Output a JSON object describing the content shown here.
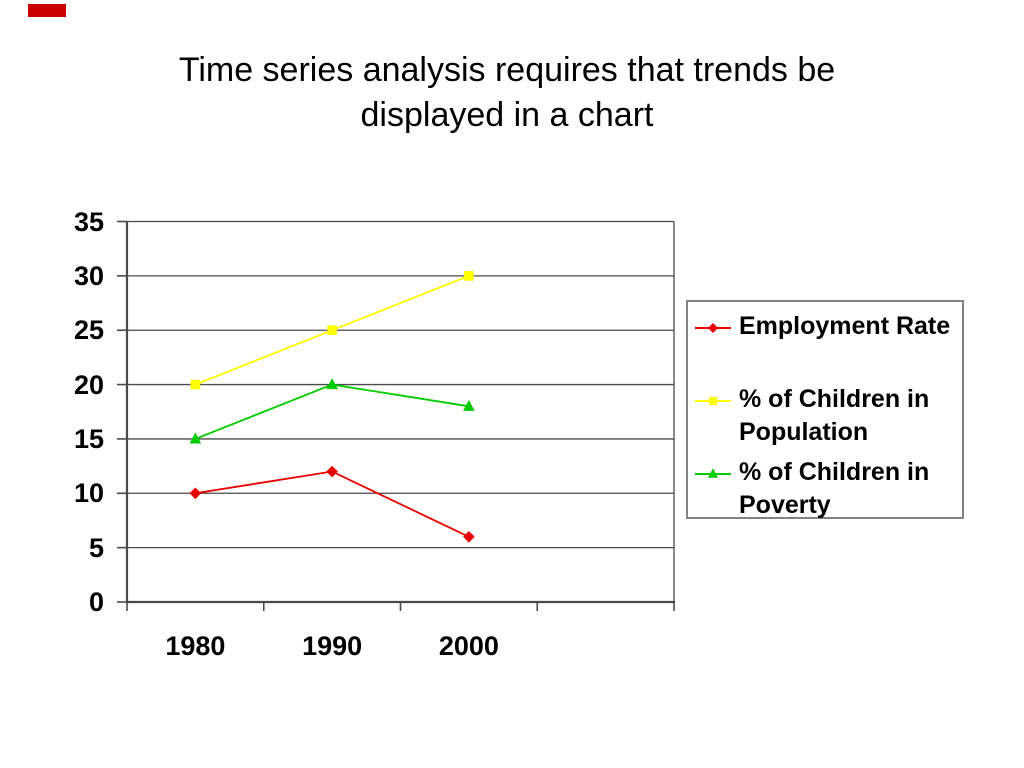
{
  "slide": {
    "title_line1": "Time series analysis requires that trends be",
    "title_line2": "displayed in a chart"
  },
  "decor": {
    "corner_mark_color": "#cc0000"
  },
  "colors": {
    "axis": "#4a4a4a",
    "gridline": "#4a4a4a",
    "legend_border": "#828282",
    "background": "#ffffff",
    "text": "#000000"
  },
  "chart_data": {
    "type": "line",
    "title": "Time series analysis requires that trends be displayed in a chart",
    "categories": [
      "1980",
      "1990",
      "2000"
    ],
    "series": [
      {
        "name": "Employment Rate",
        "values": [
          10,
          12,
          6
        ],
        "color": "#e80000",
        "marker": "diamond"
      },
      {
        "name": "% of Children in Population",
        "values": [
          20,
          25,
          30
        ],
        "color": "#ffff00",
        "marker": "square"
      },
      {
        "name": "% of Children in Poverty",
        "values": [
          15,
          20,
          18
        ],
        "color": "#00cc00",
        "marker": "triangle"
      }
    ],
    "xlabel": "",
    "ylabel": "",
    "ylim": [
      0,
      35
    ],
    "yticks": [
      0,
      5,
      10,
      15,
      20,
      25,
      30,
      35
    ],
    "grid": true,
    "legend_position": "right"
  }
}
